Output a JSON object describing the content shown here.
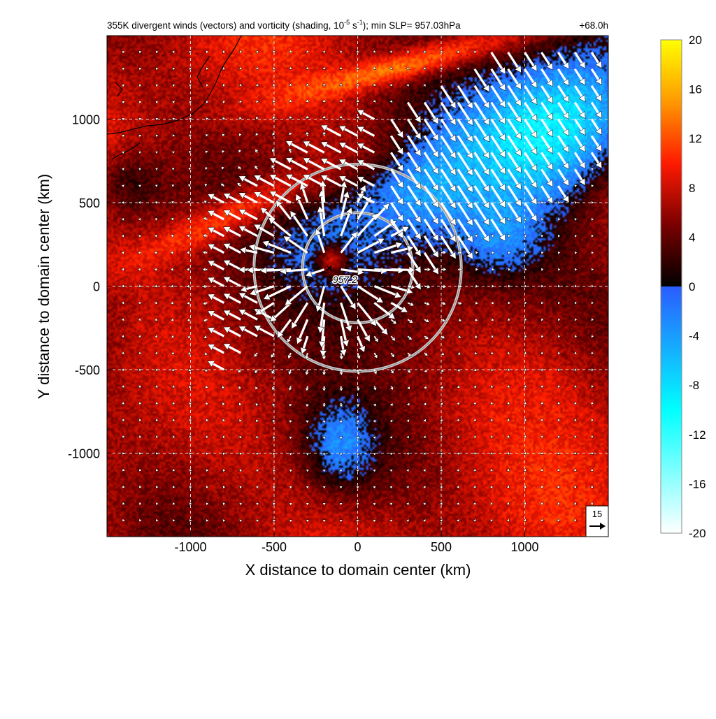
{
  "chart_data": {
    "type": "heatmap",
    "title": {
      "prefix": "355K divergent winds (vectors) and vorticity (shading, 10",
      "exp1": "-5",
      "middle": " s",
      "exp2": "-1",
      "suffix": "); min SLP= 957.03hPa"
    },
    "time_label": "+68.0h",
    "xlabel": "X distance to domain center (km)",
    "ylabel": "Y distance to domain center (km)",
    "xlim": [
      -1500,
      1500
    ],
    "ylim": [
      -1500,
      1500
    ],
    "xticks": [
      -1000,
      -500,
      0,
      500,
      1000
    ],
    "yticks": [
      -1000,
      -500,
      0,
      500,
      1000
    ],
    "grid": true,
    "center_marker": {
      "x": -170,
      "y": 110,
      "label": "957.2"
    },
    "range_rings": [
      {
        "center_x": 0,
        "center_y": 110,
        "radius_km": 330
      },
      {
        "center_x": 0,
        "center_y": 110,
        "radius_km": 620
      }
    ],
    "reference_vector": {
      "label": "15",
      "magnitude": 15
    },
    "colorbar": {
      "min": -20,
      "max": 20,
      "tick_labels": [
        "20",
        "16",
        "12",
        "8",
        "4",
        "0",
        "-4",
        "-8",
        "-12",
        "-16",
        "-20"
      ],
      "stops": [
        {
          "value": 20,
          "color": "#ffff00"
        },
        {
          "value": 15,
          "color": "#ff9900"
        },
        {
          "value": 10,
          "color": "#ff1a00"
        },
        {
          "value": 5,
          "color": "#7a0000"
        },
        {
          "value": 0,
          "color": "#000000"
        },
        {
          "value": -0.01,
          "color": "#2a5cff"
        },
        {
          "value": -10,
          "color": "#00ffff"
        },
        {
          "value": -20,
          "color": "#ffffff"
        }
      ]
    },
    "vorticity_field": {
      "background": 7,
      "features": [
        {
          "type": "blob",
          "x": 1100,
          "y": 900,
          "sx": 500,
          "sy": 300,
          "value": -12,
          "rot": 35
        },
        {
          "type": "blob",
          "x": 400,
          "y": 500,
          "sx": 350,
          "sy": 220,
          "value": -10,
          "rot": 30
        },
        {
          "type": "blob",
          "x": -100,
          "y": 100,
          "sx": 280,
          "sy": 260,
          "value": -13,
          "rot": 0
        },
        {
          "type": "blob",
          "x": 800,
          "y": 300,
          "sx": 200,
          "sy": 200,
          "value": -8,
          "rot": 0
        },
        {
          "type": "blob",
          "x": -100,
          "y": -900,
          "sx": 150,
          "sy": 200,
          "value": -6,
          "rot": 0
        },
        {
          "type": "blob",
          "x": -150,
          "y": 150,
          "sx": 60,
          "sy": 60,
          "value": 20,
          "rot": 0
        },
        {
          "type": "blob",
          "x": -800,
          "y": 400,
          "sx": 450,
          "sy": 80,
          "value": 12,
          "rot": 25
        },
        {
          "type": "blob",
          "x": 200,
          "y": 1300,
          "sx": 500,
          "sy": 60,
          "value": 13,
          "rot": 15
        },
        {
          "type": "blob",
          "x": 900,
          "y": -600,
          "sx": 400,
          "sy": 300,
          "value": 9,
          "rot": -40
        },
        {
          "type": "blob",
          "x": -1350,
          "y": 600,
          "sx": 150,
          "sy": 150,
          "value": 1,
          "rot": 0
        },
        {
          "type": "blob",
          "x": 0,
          "y": -100,
          "sx": 700,
          "sy": 500,
          "value": 3,
          "rot": 20
        }
      ]
    },
    "divergent_winds": {
      "grid_step_km": 100,
      "outflow_center": {
        "x": -170,
        "y": 110
      },
      "inner_radius_km": 450,
      "max_speed": 20,
      "upper_band_direction": "southeast",
      "upper_left_direction": "northwest"
    }
  }
}
